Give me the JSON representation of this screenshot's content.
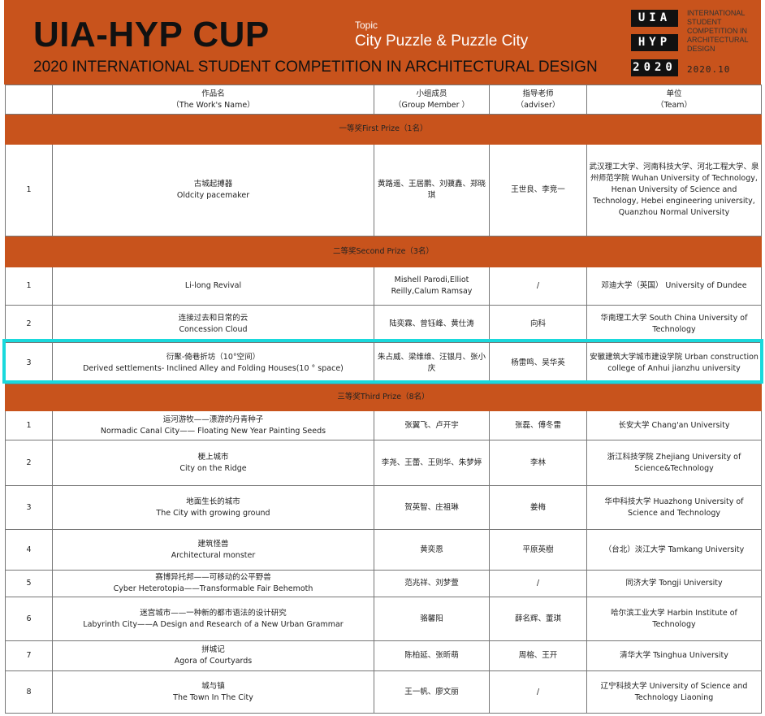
{
  "header": {
    "title": "UIA-HYP CUP",
    "subtitle": "2020 INTERNATIONAL STUDENT COMPETITION IN ARCHITECTURAL DESIGN",
    "topic_label": "Topic",
    "topic": "City Puzzle & Puzzle City",
    "logo": [
      "UIA",
      "HYP",
      "2020"
    ],
    "org_text": "INTERNATIONAL STUDENT COMPETITION IN ARCHITECTURAL DESIGN",
    "date": "2020.10"
  },
  "colors": {
    "accent": "#c8531c",
    "highlight": "#19d9dc"
  },
  "columns": [
    {
      "cn": "",
      "en": ""
    },
    {
      "cn": "作品名",
      "en": "（The Work's Name）"
    },
    {
      "cn": "小组成员",
      "en": "（Group Member ）"
    },
    {
      "cn": "指导老师",
      "en": "（adviser）"
    },
    {
      "cn": "单位",
      "en": "（Team）"
    }
  ],
  "sections": [
    {
      "title": "一等奖First Prize（1名）",
      "rows": [
        {
          "no": "1",
          "cn": "古城起搏器",
          "en": "Oldcity pacemaker",
          "members": "黄路遥、王居鹏、刘骥鑫、郑晓琪",
          "adviser": "王世良、李竞一",
          "team": "武汉理工大学、河南科技大学、河北工程大学、泉州师范学院 Wuhan University of Technology, Henan University of Science and Technology, Hebei engineering university, Quanzhou Normal University"
        }
      ]
    },
    {
      "title": "二等奖Second Prize（3名）",
      "rows": [
        {
          "no": "1",
          "cn": "",
          "en": "Li-long Revival",
          "members": "Mishell Parodi,Elliot Reilly,Calum Ramsay",
          "adviser": "/",
          "team": "邓迪大学（英国） University of Dundee"
        },
        {
          "no": "2",
          "cn": "连接过去和日常的云",
          "en": "Concession Cloud",
          "members": "陆奕霖、曾钰峰、黄仕涛",
          "adviser": "向科",
          "team": "华南理工大学 South China University of Technology"
        },
        {
          "no": "3",
          "cn": "衍聚-倚巷折坊（10°空间）",
          "en": "Derived settlements- Inclined Alley and Folding Houses(10 ° space)",
          "members": "朱占威、梁维维、汪银月、张小庆",
          "adviser": "杨雷鸣、吴华英",
          "team": "安徽建筑大学城市建设学院 Urban construction college of Anhui jianzhu university"
        }
      ]
    },
    {
      "title": "三等奖Third Prize（8名）",
      "rows": [
        {
          "no": "1",
          "cn": "运河游牧——漂游的丹青种子",
          "en": "Normadic  Canal City—— Floating New Year Painting Seeds",
          "members": "张翼飞、卢开宇",
          "adviser": "张磊、傅冬雷",
          "team": "长安大学 Chang'an University"
        },
        {
          "no": "2",
          "cn": "梗上城市",
          "en": "City on the Ridge",
          "members": "李尧、王蕾、王则华、朱梦婷",
          "adviser": "李林",
          "team": "浙江科技学院 Zhejiang University of Science&Technology"
        },
        {
          "no": "3",
          "cn": "地面生长的城市",
          "en": "The City with growing ground",
          "members": "贺英智、庄祖琳",
          "adviser": "姜梅",
          "team": "华中科技大学 Huazhong University of Science and Technology"
        },
        {
          "no": "4",
          "cn": "建筑怪兽",
          "en": "Architectural monster",
          "members": "黄奕恩",
          "adviser": "平原英樹",
          "team": "（台北）淡江大学 Tamkang University"
        },
        {
          "no": "5",
          "cn": "赛博异托邦——可移动的公平野兽",
          "en": "Cyber Heterotopia——Transformable Fair Behemoth",
          "members": "范兆祥、刘梦萱",
          "adviser": "/",
          "team": "同济大学 Tongji University"
        },
        {
          "no": "6",
          "cn": "迷宫城市——一种新的都市语法的设计研究",
          "en": "Labyrinth City——A Design and Research of a New Urban Grammar",
          "members": "骆馨阳",
          "adviser": "薛名辉、董琪",
          "team": "哈尔滨工业大学 Harbin Institute of Technology"
        },
        {
          "no": "7",
          "cn": "拼城记",
          "en": "Agora of Courtyards",
          "members": "陈柏延、张昕萌",
          "adviser": "周榕、王开",
          "team": "清华大学 Tsinghua University"
        },
        {
          "no": "8",
          "cn": "城与镇",
          "en": "The Town In The City",
          "members": "王一帆、廖文丽",
          "adviser": "/",
          "team": "辽宁科技大学 University of Science and Technology Liaoning"
        }
      ]
    }
  ]
}
